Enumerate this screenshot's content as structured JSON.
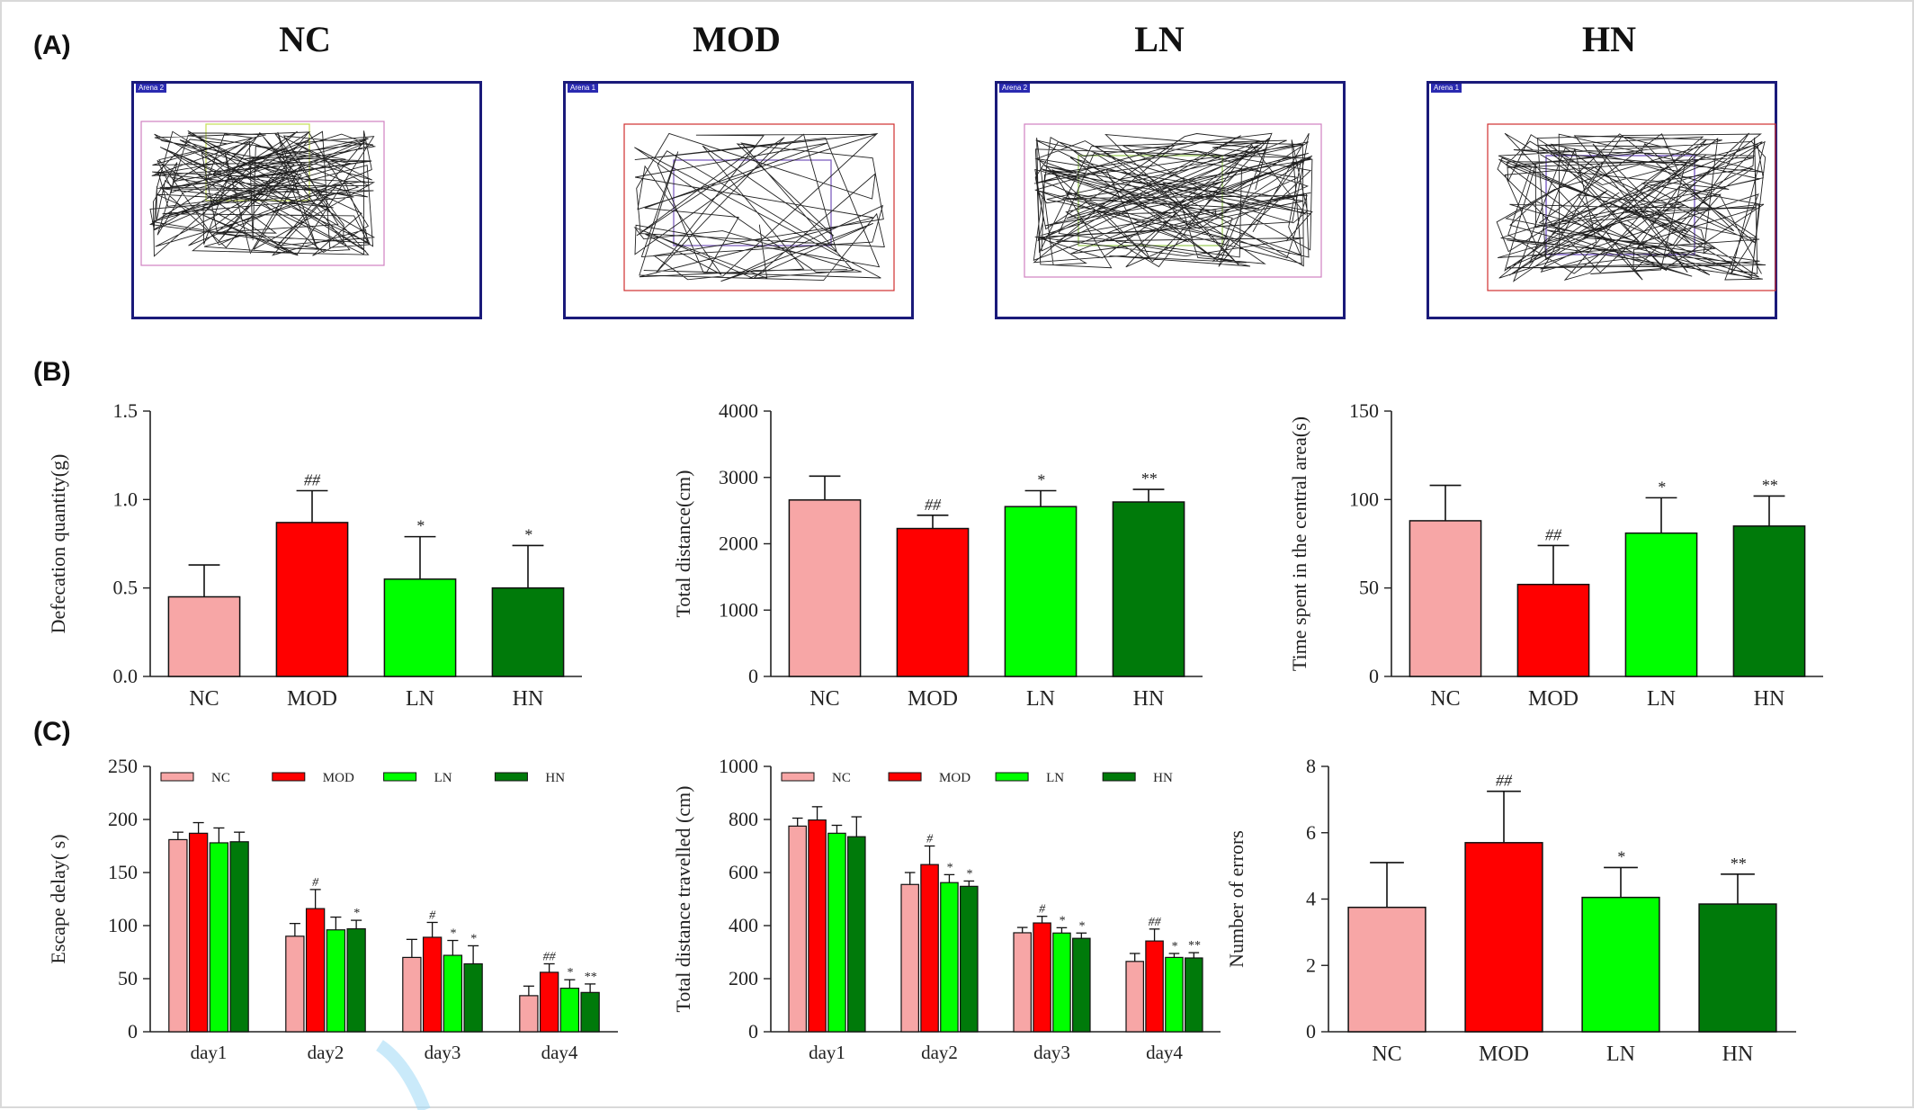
{
  "panel_labels": {
    "a": "(A)",
    "b": "(B)",
    "c": "(C)"
  },
  "colors": {
    "NC": "#f7a6a6",
    "MOD": "#ff0000",
    "LN": "#00ff00",
    "HN": "#007a0a",
    "axis": "#222222",
    "track": "#222222"
  },
  "tracks": [
    {
      "group": "NC",
      "arena_tag": "Arena 2",
      "zone_color": "#c8e060"
    },
    {
      "group": "MOD",
      "arena_tag": "Arena 1",
      "zone_color": "#8060c0"
    },
    {
      "group": "LN",
      "arena_tag": "Arena 2",
      "zone_color": "#a0d060"
    },
    {
      "group": "HN",
      "arena_tag": "Arena 1",
      "zone_color": "#7050c0"
    }
  ],
  "chart_data": [
    {
      "id": "b1",
      "type": "bar",
      "ylabel": "Defecation quantity(g)",
      "categories": [
        "NC",
        "MOD",
        "LN",
        "HN"
      ],
      "values": [
        0.45,
        0.87,
        0.55,
        0.5
      ],
      "errors": [
        0.18,
        0.18,
        0.24,
        0.24
      ],
      "marks": [
        "",
        "##",
        "*",
        "*"
      ],
      "ylim": [
        0,
        1.5
      ],
      "yticks": [
        "0.0",
        "0.5",
        "1.0",
        "1.5"
      ]
    },
    {
      "id": "b2",
      "type": "bar",
      "ylabel": "Total distance(cm)",
      "categories": [
        "NC",
        "MOD",
        "LN",
        "HN"
      ],
      "values": [
        2660,
        2230,
        2560,
        2630
      ],
      "errors": [
        360,
        200,
        240,
        190
      ],
      "marks": [
        "",
        "##",
        "*",
        "**"
      ],
      "ylim": [
        0,
        4000
      ],
      "yticks": [
        "0",
        "1000",
        "2000",
        "3000",
        "4000"
      ]
    },
    {
      "id": "b3",
      "type": "bar",
      "ylabel": "Time spent in the central area(s)",
      "categories": [
        "NC",
        "MOD",
        "LN",
        "HN"
      ],
      "values": [
        88,
        52,
        81,
        85
      ],
      "errors": [
        20,
        22,
        20,
        17
      ],
      "marks": [
        "",
        "##",
        "*",
        "**"
      ],
      "ylim": [
        0,
        150
      ],
      "yticks": [
        "0",
        "50",
        "100",
        "150"
      ]
    },
    {
      "id": "c1",
      "type": "bar",
      "ylabel": "Escape delay( s)",
      "categories": [
        "day1",
        "day2",
        "day3",
        "day4"
      ],
      "legend": [
        "NC",
        "MOD",
        "LN",
        "HN"
      ],
      "series": [
        {
          "name": "NC",
          "values": [
            181,
            90,
            70,
            34
          ],
          "errors": [
            7,
            12,
            17,
            9
          ],
          "marks": [
            "",
            "",
            "",
            ""
          ]
        },
        {
          "name": "MOD",
          "values": [
            187,
            116,
            89,
            56
          ],
          "errors": [
            10,
            18,
            14,
            8
          ],
          "marks": [
            "",
            "#",
            "#",
            "##"
          ]
        },
        {
          "name": "LN",
          "values": [
            178,
            96,
            72,
            41
          ],
          "errors": [
            14,
            12,
            14,
            8
          ],
          "marks": [
            "",
            "",
            "*",
            "*"
          ]
        },
        {
          "name": "HN",
          "values": [
            179,
            97,
            64,
            37
          ],
          "errors": [
            9,
            8,
            17,
            8
          ],
          "marks": [
            "",
            "*",
            "*",
            "**"
          ]
        }
      ],
      "ylim": [
        0,
        250
      ],
      "yticks": [
        "0",
        "50",
        "100",
        "150",
        "200",
        "250"
      ]
    },
    {
      "id": "c2",
      "type": "bar",
      "ylabel": "Total distance travelled (cm)",
      "categories": [
        "day1",
        "day2",
        "day3",
        "day4"
      ],
      "legend": [
        "NC",
        "MOD",
        "LN",
        "HN"
      ],
      "series": [
        {
          "name": "NC",
          "values": [
            775,
            555,
            373,
            265
          ],
          "errors": [
            30,
            45,
            20,
            30
          ],
          "marks": [
            "",
            "",
            "",
            ""
          ]
        },
        {
          "name": "MOD",
          "values": [
            798,
            630,
            410,
            342
          ],
          "errors": [
            50,
            70,
            25,
            45
          ],
          "marks": [
            "",
            "#",
            "#",
            "##"
          ]
        },
        {
          "name": "LN",
          "values": [
            748,
            562,
            372,
            280
          ],
          "errors": [
            30,
            30,
            20,
            15
          ],
          "marks": [
            "",
            "*",
            "*",
            "*"
          ]
        },
        {
          "name": "HN",
          "values": [
            735,
            548,
            352,
            278
          ],
          "errors": [
            75,
            20,
            20,
            20
          ],
          "marks": [
            "",
            "*",
            "*",
            "**"
          ]
        }
      ],
      "ylim": [
        0,
        1000
      ],
      "yticks": [
        "0",
        "200",
        "400",
        "600",
        "800",
        "1000"
      ]
    },
    {
      "id": "c3",
      "type": "bar",
      "ylabel": "Number of errors",
      "categories": [
        "NC",
        "MOD",
        "LN",
        "HN"
      ],
      "values": [
        3.75,
        5.7,
        4.05,
        3.85
      ],
      "errors": [
        1.35,
        1.55,
        0.9,
        0.9
      ],
      "marks": [
        "",
        "##",
        "*",
        "**"
      ],
      "ylim": [
        0,
        8
      ],
      "yticks": [
        "0",
        "2",
        "4",
        "6",
        "8"
      ]
    }
  ]
}
